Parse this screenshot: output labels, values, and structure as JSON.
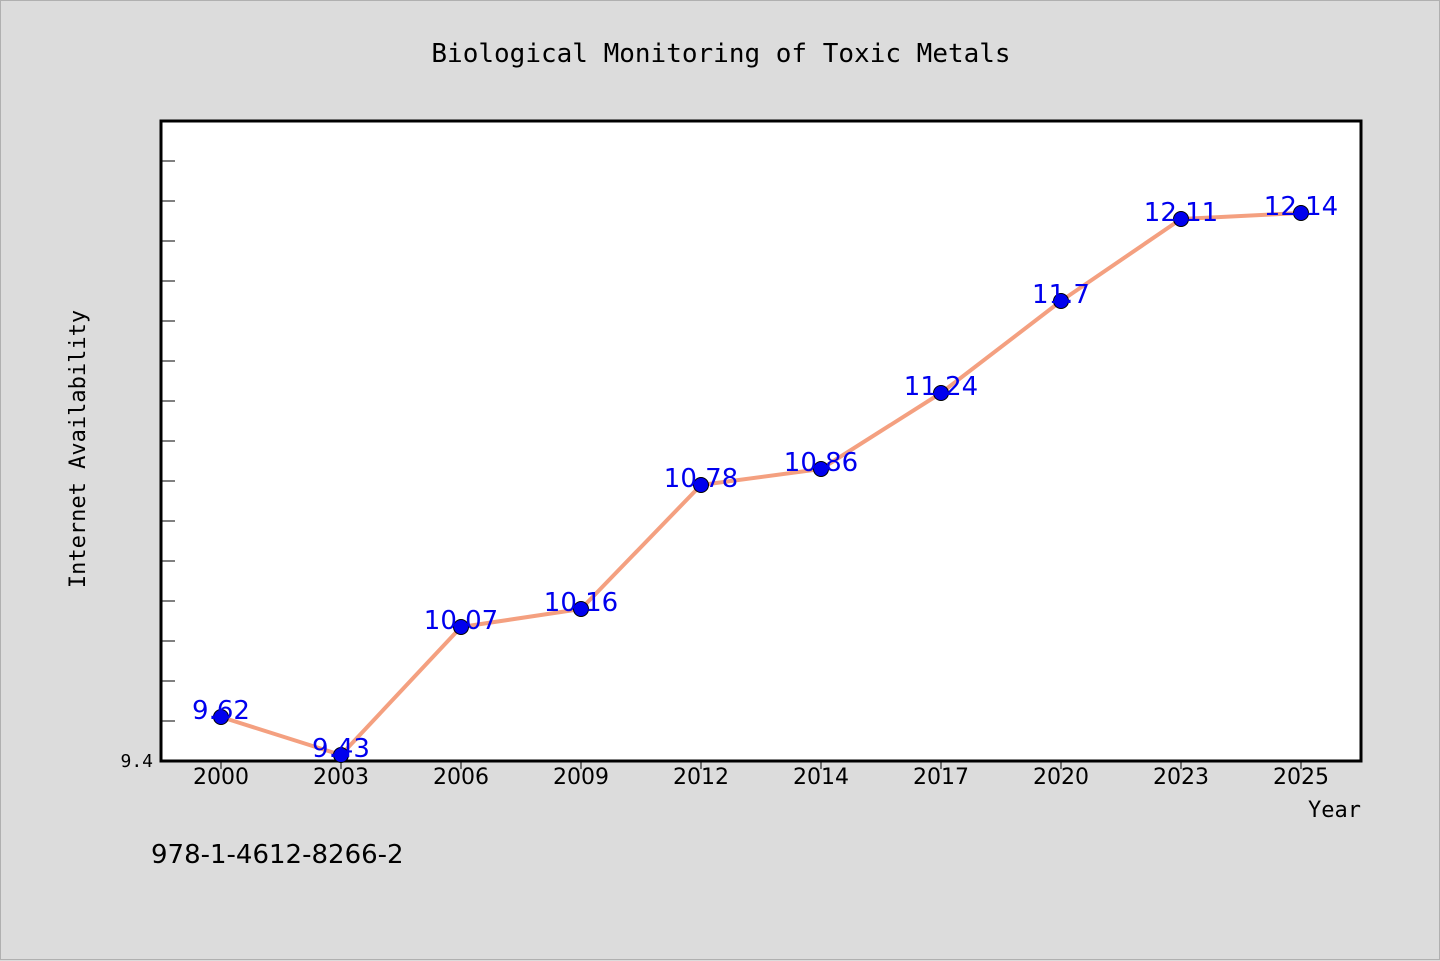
{
  "chart_data": {
    "type": "line",
    "title": "Biological Monitoring of Toxic Metals",
    "xlabel": "Year",
    "ylabel": "Internet Availability",
    "categories": [
      "2000",
      "2003",
      "2006",
      "2009",
      "2012",
      "2014",
      "2017",
      "2020",
      "2023",
      "2025"
    ],
    "series": [
      {
        "values": [
          9.62,
          9.43,
          10.07,
          10.16,
          10.78,
          10.86,
          11.24,
          11.7,
          12.11,
          12.14
        ]
      }
    ],
    "data_labels": [
      "9.62",
      "9.43",
      "10.07",
      "10.16",
      "10.78",
      "10.86",
      "11.24",
      "11.7",
      "12.11",
      "12.14"
    ],
    "ylim": [
      9.4,
      12.6
    ],
    "y_tick_labels": [
      {
        "value": 9.4,
        "label": "9.4"
      }
    ],
    "grid": false,
    "footer_text": "978-1-4612-8266-2",
    "colors": {
      "line": "#f4a080",
      "marker": "#0000ee",
      "data_label": "#0000ee",
      "plot_background": "#ffffff",
      "figure_background": "#dcdcdc"
    }
  }
}
